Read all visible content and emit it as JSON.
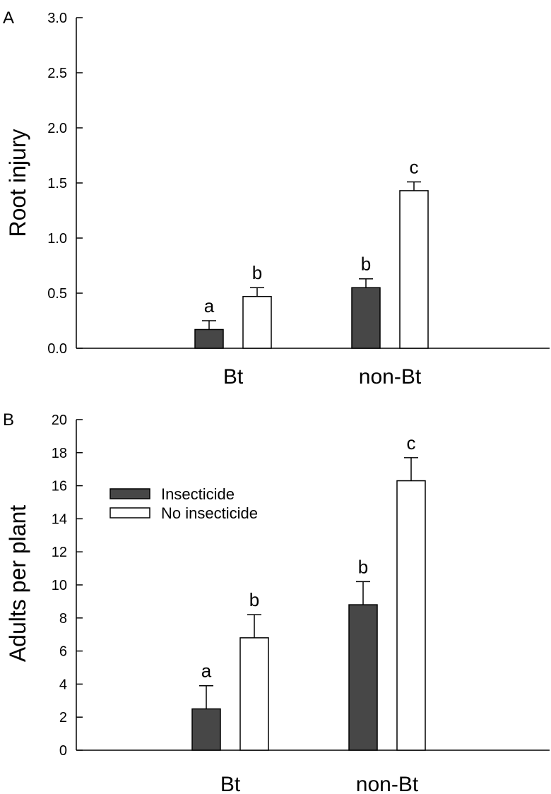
{
  "chart_data": [
    {
      "panel": "A",
      "type": "bar",
      "categories": [
        "Bt",
        "non-Bt"
      ],
      "series": [
        {
          "name": "Insecticide",
          "values": [
            0.17,
            0.55
          ],
          "errors": [
            0.08,
            0.08
          ],
          "letters": [
            "a",
            "b"
          ]
        },
        {
          "name": "No insecticide",
          "values": [
            0.47,
            1.43
          ],
          "errors": [
            0.08,
            0.08
          ],
          "letters": [
            "b",
            "c"
          ]
        }
      ],
      "title": "",
      "xlabel": "",
      "ylabel": "Root injury",
      "ylim": [
        0,
        3.0
      ],
      "yticks": [
        "0.0",
        "0.5",
        "1.0",
        "1.5",
        "2.0",
        "2.5",
        "3.0"
      ],
      "grid": false,
      "legend": false
    },
    {
      "panel": "B",
      "type": "bar",
      "categories": [
        "Bt",
        "non-Bt"
      ],
      "series": [
        {
          "name": "Insecticide",
          "values": [
            2.5,
            8.8
          ],
          "errors": [
            1.4,
            1.4
          ],
          "letters": [
            "a",
            "b"
          ]
        },
        {
          "name": "No insecticide",
          "values": [
            6.8,
            16.3
          ],
          "errors": [
            1.4,
            1.4
          ],
          "letters": [
            "b",
            "c"
          ]
        }
      ],
      "title": "",
      "xlabel": "",
      "ylabel": "Adults per plant",
      "ylim": [
        0,
        20
      ],
      "yticks": [
        "0",
        "2",
        "4",
        "6",
        "8",
        "10",
        "12",
        "14",
        "16",
        "18",
        "20"
      ],
      "grid": false,
      "legend": true,
      "legend_position": "upper-left"
    }
  ],
  "colors": {
    "insecticide": "#474747",
    "no_insecticide": "#ffffff",
    "stroke": "#000000"
  }
}
